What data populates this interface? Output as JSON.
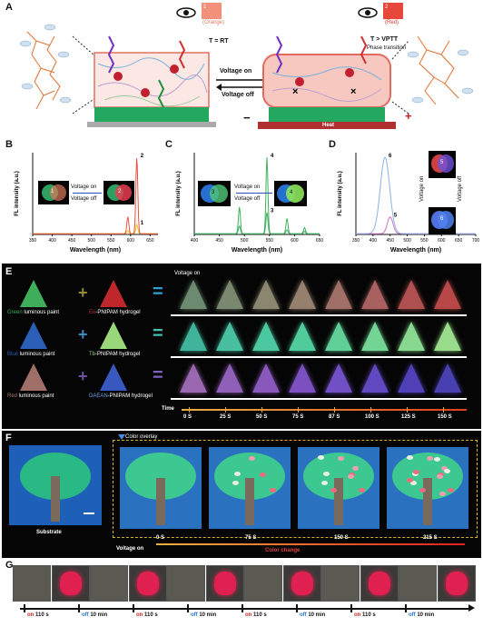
{
  "panel_labels": [
    "A",
    "B",
    "C",
    "D",
    "E",
    "F",
    "G"
  ],
  "panel_a": {
    "left_temp": "T = RT",
    "left_color_label": "(Orange)",
    "left_color_num": "1",
    "right_temp": "T > VPTT",
    "right_phase": "Phase transition",
    "right_color_label": "(Red)",
    "right_color_num": "2",
    "voltage_on": "Voltage on",
    "voltage_off": "Voltage off",
    "heat": "Heat",
    "minus": "−",
    "plus": "+"
  },
  "chart_data": [
    {
      "type": "line",
      "panel": "B",
      "xlabel": "Wavelength (nm)",
      "ylabel": "FL intensity (a.u.)",
      "xlim": [
        350,
        670
      ],
      "x_ticks": [
        350,
        400,
        450,
        500,
        550,
        600,
        650
      ],
      "series": [
        {
          "name": "1",
          "color": "#e8c020",
          "peaks": [
            {
              "x": 593,
              "y": 0.04
            },
            {
              "x": 616,
              "y": 0.12
            }
          ]
        },
        {
          "name": "2",
          "color": "#e85040",
          "peaks": [
            {
              "x": 593,
              "y": 0.22
            },
            {
              "x": 616,
              "y": 1.0
            }
          ]
        }
      ],
      "inset_voltage_on": "Voltage on",
      "inset_voltage_off": "Voltage off",
      "inset_left_num": "1",
      "inset_right_num": "2"
    },
    {
      "type": "line",
      "panel": "C",
      "xlabel": "Wavelength (nm)",
      "ylabel": "FL intensity (a.u.)",
      "xlim": [
        400,
        650
      ],
      "x_ticks": [
        400,
        450,
        500,
        550,
        600,
        650
      ],
      "series": [
        {
          "name": "3",
          "color": "#40b060",
          "peaks": [
            {
              "x": 490,
              "y": 0.1
            },
            {
              "x": 545,
              "y": 0.28
            },
            {
              "x": 585,
              "y": 0.05
            },
            {
              "x": 620,
              "y": 0.03
            }
          ]
        },
        {
          "name": "4",
          "color": "#40b060",
          "peaks": [
            {
              "x": 490,
              "y": 0.35
            },
            {
              "x": 545,
              "y": 1.0
            },
            {
              "x": 585,
              "y": 0.2
            },
            {
              "x": 620,
              "y": 0.08
            }
          ]
        }
      ],
      "inset_voltage_on": "Voltage on",
      "inset_voltage_off": "Voltage off",
      "inset_left_num": "3",
      "inset_right_num": "4"
    },
    {
      "type": "line",
      "panel": "D",
      "xlabel": "Wavelength (nm)",
      "ylabel": "FL intensity (a.u.)",
      "xlim": [
        350,
        700
      ],
      "x_ticks": [
        350,
        400,
        450,
        500,
        550,
        600,
        650,
        700
      ],
      "series": [
        {
          "name": "5",
          "color": "#d070c0",
          "peaks": [
            {
              "x": 450,
              "y": 0.22
            },
            {
              "x": 615,
              "y": 0.05
            }
          ]
        },
        {
          "name": "6",
          "color": "#8ab0e0",
          "peaks": [
            {
              "x": 435,
              "y": 1.0
            },
            {
              "x": 615,
              "y": 0.08
            }
          ]
        }
      ],
      "inset_voltage_on": "Voltage on",
      "inset_voltage_off": "Voltage off",
      "inset_top_num": "5",
      "inset_bottom_num": "6"
    }
  ],
  "panel_e": {
    "voltage_on": "Voltage on",
    "time_label": "Time",
    "time_ticks": [
      "0 S",
      "25 S",
      "50 S",
      "75 S",
      "87 S",
      "100 S",
      "125 S",
      "150 S"
    ],
    "rows": [
      {
        "paint_color_word": "Green",
        "paint_suffix": " luminous paint",
        "gel_prefix": "Eu",
        "gel_suffix": "-PNIPAM hydrogel",
        "paint_color": "#3fae5a",
        "gel_color": "#c0272d",
        "op_color": "#9a8a30",
        "eq_color": "#2ea0d0",
        "cones": [
          "#6b8a70",
          "#7a8870",
          "#8a8670",
          "#94806c",
          "#a07068",
          "#a86060",
          "#b05050",
          "#b84848"
        ]
      },
      {
        "paint_color_word": "Blue",
        "paint_suffix": " luminous paint",
        "gel_prefix": "Tb",
        "gel_suffix": "-PNIPAM hydrogel",
        "paint_color": "#2b5fb8",
        "gel_color": "#9ad67a",
        "op_color": "#3c8ac0",
        "eq_color": "#40c0b0",
        "cones": [
          "#40b49a",
          "#48c0a0",
          "#4cc8a0",
          "#50cc9c",
          "#60d098",
          "#74d494",
          "#88d890",
          "#98dc8c"
        ]
      },
      {
        "paint_color_word": "Red",
        "paint_suffix": " luminous paint",
        "gel_prefix": "DAEAN",
        "gel_suffix": "-PNIPAM hydrogel",
        "paint_color": "#a07068",
        "gel_color": "#3858c0",
        "op_color": "#7050a0",
        "eq_color": "#8060c0",
        "cones": [
          "#9a68b0",
          "#9060b8",
          "#8858bc",
          "#7c50c0",
          "#7050c4",
          "#6048c0",
          "#5040b8",
          "#4840b0"
        ]
      }
    ]
  },
  "panel_f": {
    "substrate": "Substrate",
    "color_overlay": "Color overlay",
    "voltage_on": "Voltage on",
    "color_change": "Color change",
    "time_ticks": [
      "0 S",
      "75 S",
      "150 S",
      "215 S"
    ]
  },
  "panel_g": {
    "sequence": [
      {
        "state": "on",
        "duration": "110 s"
      },
      {
        "state": "off",
        "duration": "10 min"
      },
      {
        "state": "on",
        "duration": "110 s"
      },
      {
        "state": "off",
        "duration": "10 min"
      },
      {
        "state": "on",
        "duration": "110 s"
      },
      {
        "state": "off",
        "duration": "10 min"
      },
      {
        "state": "on",
        "duration": "110 s"
      },
      {
        "state": "off",
        "duration": "10 min"
      }
    ],
    "frames_on": [
      false,
      true,
      false,
      true,
      false,
      true,
      false,
      true,
      false,
      true,
      false,
      true
    ]
  },
  "colors": {
    "orange_chip": "#f2917a",
    "red_chip": "#e8473c",
    "green_base": "#2aa860",
    "on_color": "#d02020",
    "off_color": "#2878c8"
  }
}
